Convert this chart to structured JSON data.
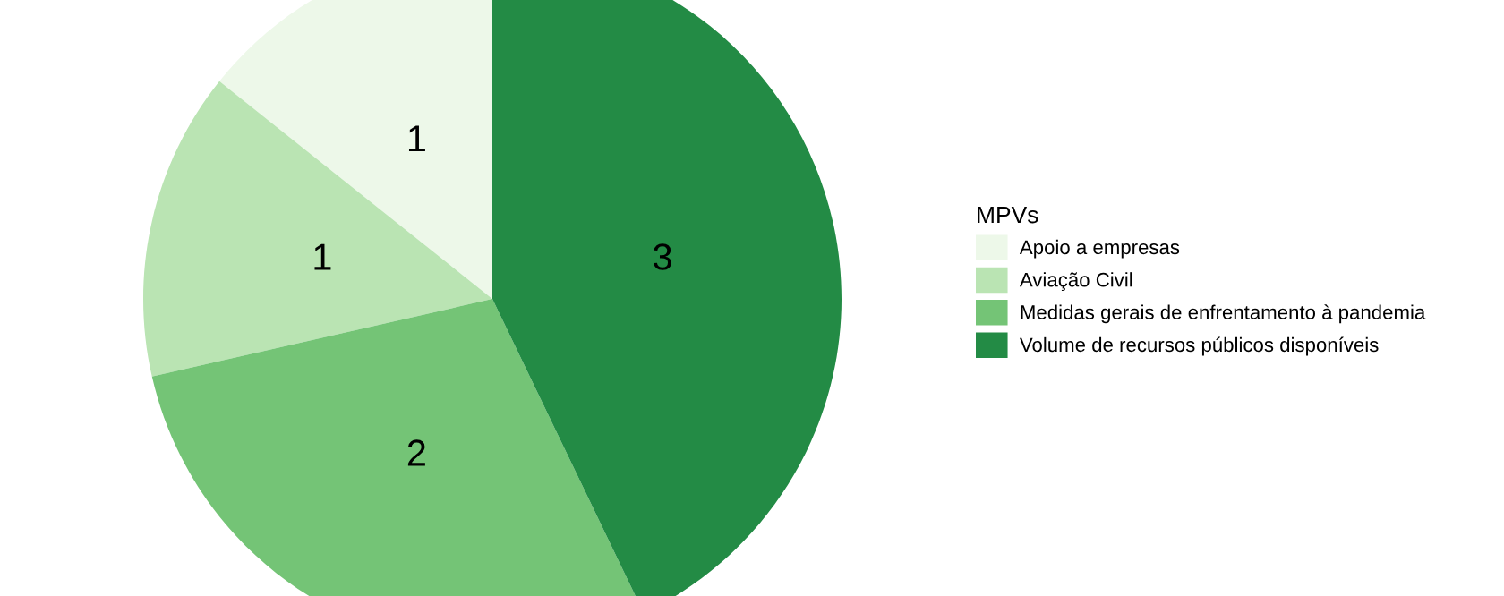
{
  "chart_data": {
    "type": "pie",
    "categories": [
      "Apoio a empresas",
      "Aviação Civil",
      "Medidas gerais de enfrentamento à pandemia",
      "Volume de recursos públicos disponíveis"
    ],
    "values": [
      1,
      1,
      2,
      3
    ],
    "colors": [
      "#edf8e9",
      "#bae4b3",
      "#74c476",
      "#238b45"
    ],
    "legend_title": "MPVs",
    "legend": "right",
    "data_labels": true
  }
}
